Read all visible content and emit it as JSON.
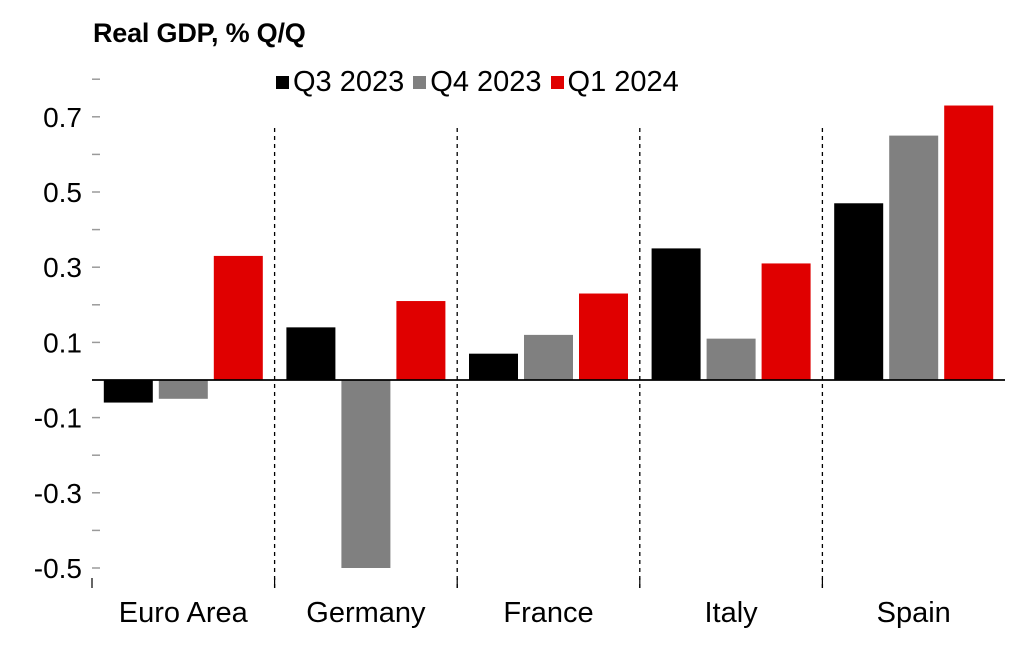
{
  "chart_data": {
    "type": "bar",
    "title": "Real GDP, % Q/Q",
    "xlabel": "",
    "ylabel": "",
    "categories": [
      "Euro Area",
      "Germany",
      "France",
      "Italy",
      "Spain"
    ],
    "series": [
      {
        "name": "Q3 2023",
        "color": "#000000",
        "values": [
          -0.06,
          0.14,
          0.07,
          0.35,
          0.47
        ]
      },
      {
        "name": "Q4 2023",
        "color": "#808080",
        "values": [
          -0.05,
          -0.5,
          0.12,
          0.11,
          0.65
        ]
      },
      {
        "name": "Q1 2024",
        "color": "#e00000",
        "values": [
          0.33,
          0.21,
          0.23,
          0.31,
          0.73
        ]
      }
    ],
    "ylim": [
      -0.55,
      0.8
    ],
    "yticks": [
      -0.5,
      -0.3,
      -0.1,
      0.1,
      0.3,
      0.5,
      0.7
    ],
    "ytick_labels": [
      "-0.5",
      "-0.3",
      "-0.1",
      "0.1",
      "0.3",
      "0.5",
      "0.7"
    ],
    "minor_yticks": [
      -0.4,
      -0.2,
      0.0,
      0.2,
      0.4,
      0.6,
      0.8
    ],
    "category_separators": "dashed",
    "grid": false,
    "legend_position": "top"
  }
}
